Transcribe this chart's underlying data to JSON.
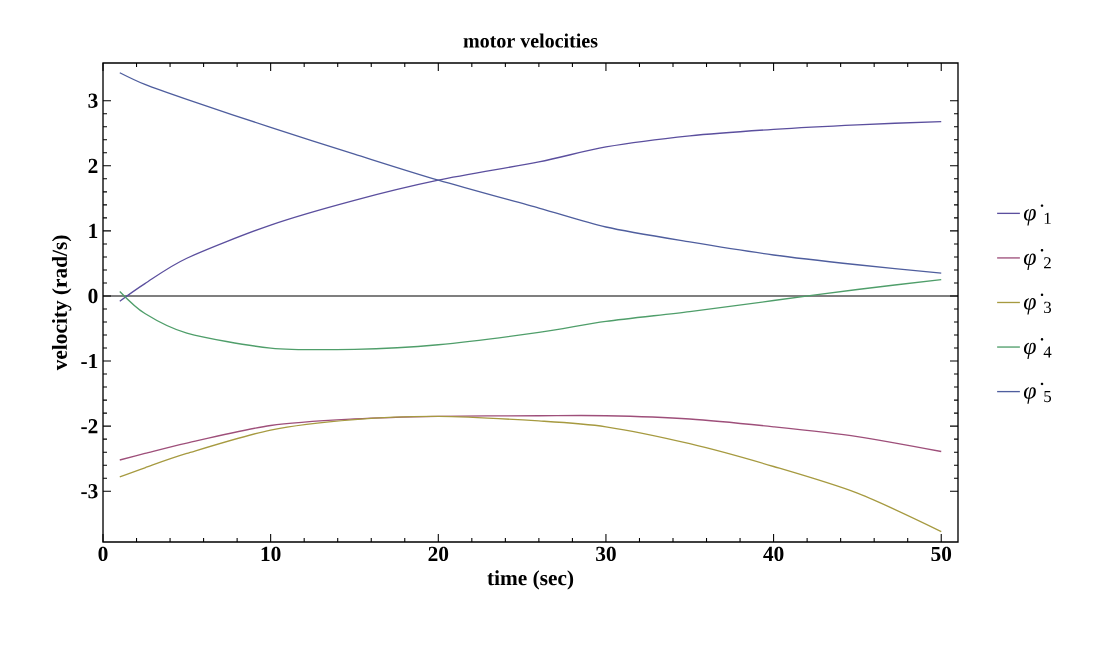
{
  "chart_data": {
    "type": "line",
    "title": "motor velocities",
    "xlabel": "time (sec)",
    "ylabel": "velocity (rad/s)",
    "xlim": [
      0,
      51
    ],
    "ylim": [
      -3.78,
      3.58
    ],
    "xticks": [
      0,
      10,
      20,
      30,
      40,
      50
    ],
    "yticks": [
      -3,
      -2,
      -1,
      0,
      1,
      2,
      3
    ],
    "x": [
      1,
      2.5,
      5,
      10,
      15,
      20,
      26,
      30,
      35,
      40,
      45,
      50
    ],
    "series": [
      {
        "name": "*φ̇*$_{1}$",
        "color": "#5b4f9e",
        "values": [
          -0.08,
          0.19,
          0.58,
          1.09,
          1.47,
          1.78,
          2.06,
          2.29,
          2.46,
          2.56,
          2.63,
          2.68
        ]
      },
      {
        "name": "*φ̇*$_{2}$",
        "color": "#9e4f7a",
        "values": [
          -2.52,
          -2.42,
          -2.26,
          -1.99,
          -1.89,
          -1.85,
          -1.84,
          -1.84,
          -1.89,
          -2.01,
          -2.16,
          -2.39
        ]
      },
      {
        "name": "*φ̇*$_{3}$",
        "color": "#a69a40",
        "values": [
          -2.78,
          -2.64,
          -2.42,
          -2.06,
          -1.9,
          -1.85,
          -1.92,
          -2.01,
          -2.27,
          -2.62,
          -3.03,
          -3.62
        ]
      },
      {
        "name": "*φ̇*$_{4}$",
        "color": "#4f9e6a",
        "values": [
          0.07,
          -0.27,
          -0.57,
          -0.8,
          -0.82,
          -0.75,
          -0.56,
          -0.39,
          -0.24,
          -0.07,
          0.1,
          0.25
        ]
      },
      {
        "name": "*φ̇*$_{5}$",
        "color": "#4f5e9e",
        "values": [
          3.43,
          3.25,
          3.02,
          2.59,
          2.18,
          1.78,
          1.35,
          1.06,
          0.83,
          0.63,
          0.48,
          0.35
        ]
      }
    ],
    "ref_lines": [
      {
        "axis": "y",
        "value": 0,
        "color": "#000000"
      }
    ],
    "grid": false,
    "legend": "right",
    "marker": "none",
    "line_style": "solid"
  }
}
